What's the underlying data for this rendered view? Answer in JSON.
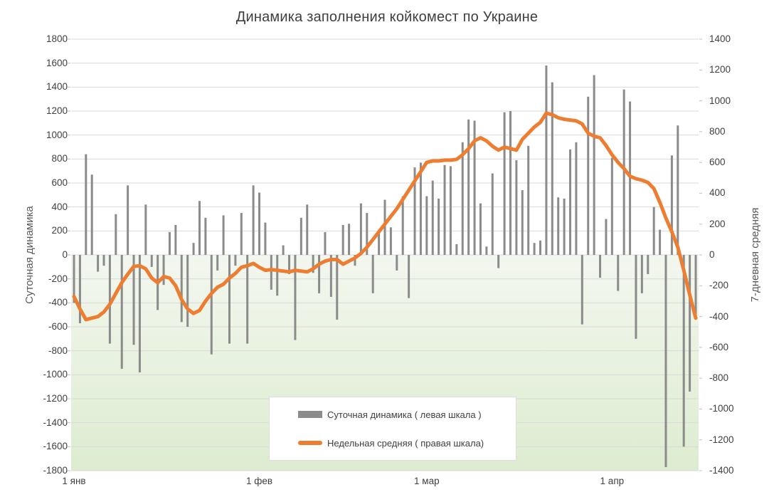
{
  "chart_data": {
    "type": "combo",
    "title": "Динамика заполнения койкомест по Украине",
    "x_axis": {
      "tick_labels": [
        "1 янв",
        "1 фев",
        "1 мар",
        "1 апр"
      ],
      "tick_day_indices": [
        0,
        31,
        59,
        90
      ],
      "num_days": 105,
      "date_range": "1 янв — 15 апр"
    },
    "left_axis": {
      "title": "Суточная динамика",
      "min": -1800,
      "max": 1800,
      "step": 200
    },
    "right_axis": {
      "title": "7-дневная средняя",
      "min": -1400,
      "max": 1400,
      "step": 200
    },
    "legend": [
      {
        "label": "Суточная динамика ( левая шкала )",
        "series": "daily"
      },
      {
        "label": "Недельная средняя ( правая шкала)",
        "series": "weekly"
      }
    ],
    "series": [
      {
        "name": "daily",
        "type": "bar",
        "axis": "left",
        "color": "#8b8b8b",
        "values": [
          -400,
          -570,
          840,
          670,
          -140,
          -90,
          -740,
          340,
          -950,
          580,
          -750,
          -980,
          420,
          -100,
          -460,
          -250,
          190,
          250,
          -560,
          -600,
          100,
          450,
          310,
          -830,
          -130,
          330,
          -740,
          -90,
          350,
          -740,
          580,
          520,
          270,
          -290,
          -340,
          80,
          -160,
          -710,
          310,
          420,
          -150,
          -320,
          190,
          -350,
          -540,
          250,
          260,
          -90,
          430,
          350,
          -320,
          210,
          460,
          230,
          -130,
          490,
          -360,
          730,
          770,
          490,
          620,
          470,
          750,
          740,
          90,
          940,
          1130,
          1120,
          430,
          70,
          680,
          -110,
          1190,
          1200,
          790,
          540,
          910,
          100,
          120,
          1580,
          1440,
          480,
          470,
          880,
          940,
          -580,
          1320,
          1500,
          -190,
          300,
          810,
          -300,
          1380,
          1280,
          -700,
          -320,
          -160,
          400,
          210,
          -1770,
          830,
          1080,
          -1600,
          -1140,
          -510
        ]
      },
      {
        "name": "weekly",
        "type": "line",
        "axis": "right",
        "color": "#ED7D31",
        "values": [
          -270,
          -350,
          -420,
          -410,
          -400,
          -370,
          -320,
          -250,
          -180,
          -125,
          -75,
          -70,
          -90,
          -150,
          -180,
          -140,
          -150,
          -200,
          -290,
          -350,
          -380,
          -360,
          -300,
          -250,
          -210,
          -190,
          -150,
          -120,
          -80,
          -70,
          -55,
          -80,
          -100,
          -95,
          -100,
          -105,
          -110,
          -100,
          -105,
          -110,
          -90,
          -60,
          -40,
          -30,
          -30,
          -60,
          -40,
          -20,
          10,
          50,
          100,
          150,
          200,
          250,
          300,
          360,
          420,
          480,
          540,
          600,
          610,
          610,
          615,
          615,
          620,
          650,
          690,
          740,
          760,
          740,
          705,
          680,
          700,
          690,
          680,
          750,
          790,
          830,
          860,
          920,
          910,
          890,
          880,
          875,
          870,
          850,
          790,
          770,
          760,
          710,
          650,
          600,
          560,
          510,
          495,
          485,
          470,
          430,
          340,
          240,
          150,
          50,
          -100,
          -260,
          -410
        ]
      }
    ],
    "style": {
      "gridline_color": "#d9d9d9",
      "tick_mark_color": "#bfbfbf",
      "below_zero_fill_top": "#f3f7ef",
      "below_zero_fill_bottom": "#ddecd0",
      "text_color": "#404040",
      "axis_title_color": "#595959",
      "background": "#ffffff"
    }
  }
}
